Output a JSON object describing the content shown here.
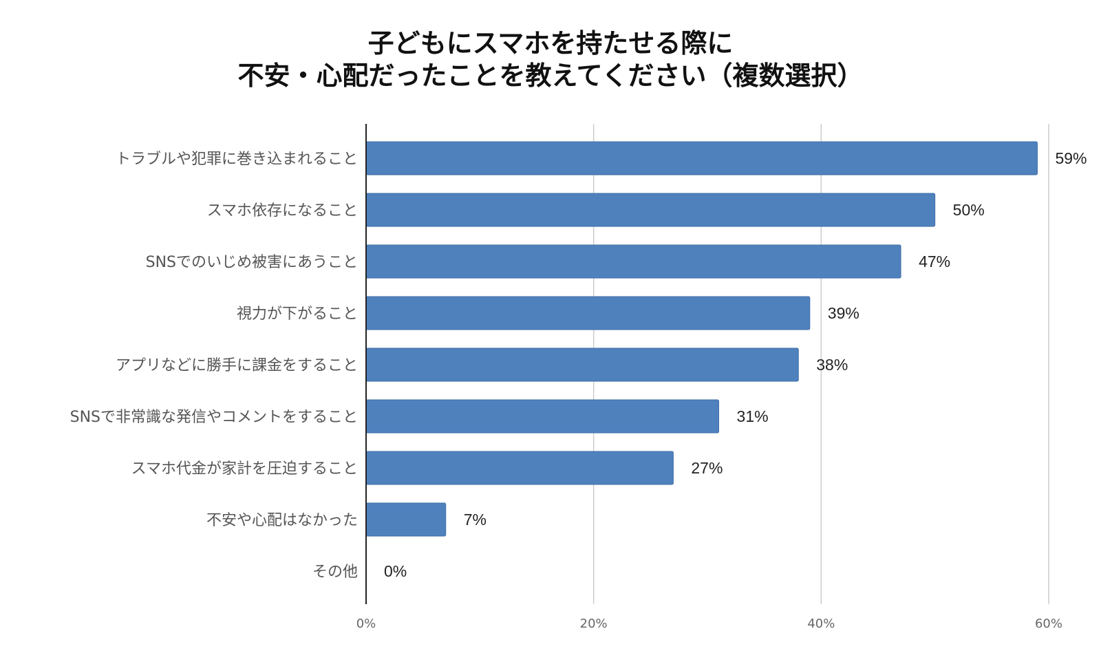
{
  "chart_data": {
    "type": "bar",
    "orientation": "horizontal",
    "title_lines": [
      "子どもにスマホを持たせる際に",
      "不安・心配だったことを教えてください（複数選択）"
    ],
    "categories": [
      "トラブルや犯罪に巻き込まれること",
      "スマホ依存になること",
      "SNSでのいじめ被害にあうこと",
      "視力が下がること",
      "アプリなどに勝手に課金をすること",
      "SNSで非常識な発信やコメントをすること",
      "スマホ代金が家計を圧迫すること",
      "不安や心配はなかった",
      "その他"
    ],
    "values": [
      59,
      50,
      47,
      39,
      38,
      31,
      27,
      7,
      0
    ],
    "value_labels": [
      "59%",
      "50%",
      "47%",
      "39%",
      "38%",
      "31%",
      "27%",
      "7%",
      "0%"
    ],
    "x_ticks": [
      0,
      20,
      40,
      60
    ],
    "x_tick_labels": [
      "0%",
      "20%",
      "40%",
      "60%"
    ],
    "xlim": [
      0,
      60
    ],
    "grid": "vertical",
    "legend": "none",
    "colors": {
      "bar": "#4f81bd",
      "bar_edge": "#3e6ea6",
      "grid": "#cccccc",
      "axis": "#222222"
    }
  }
}
